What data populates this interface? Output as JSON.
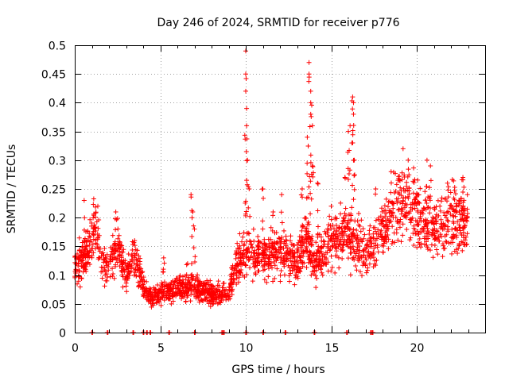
{
  "chart_data": {
    "type": "scatter",
    "title": "Day 246 of 2024, SRMTID for receiver p776",
    "xlabel": "GPS time / hours",
    "ylabel": "SRMTID / TECUs",
    "xlim": [
      0,
      24
    ],
    "ylim": [
      0,
      0.5
    ],
    "xticks": [
      0,
      5,
      10,
      15,
      20
    ],
    "xtick_labels": [
      "0",
      "5",
      "10",
      "15",
      "20"
    ],
    "yticks": [
      0,
      0.05,
      0.1,
      0.15,
      0.2,
      0.25,
      0.3,
      0.35,
      0.4,
      0.45,
      0.5
    ],
    "ytick_labels": [
      "0",
      "0.05",
      "0.1",
      "0.15",
      "0.2",
      "0.25",
      "0.3",
      "0.35",
      "0.4",
      "0.45",
      "0.5"
    ],
    "grid": true,
    "marker": "+",
    "color": "#ff0000",
    "series": [
      {
        "name": "SRMTID",
        "trend": [
          [
            0.0,
            0.11
          ],
          [
            0.5,
            0.13
          ],
          [
            1.0,
            0.16
          ],
          [
            1.2,
            0.18
          ],
          [
            1.5,
            0.12
          ],
          [
            2.0,
            0.11
          ],
          [
            2.5,
            0.15
          ],
          [
            3.0,
            0.1
          ],
          [
            3.5,
            0.13
          ],
          [
            4.0,
            0.08
          ],
          [
            4.5,
            0.06
          ],
          [
            5.0,
            0.07
          ],
          [
            6.0,
            0.075
          ],
          [
            7.0,
            0.08
          ],
          [
            8.0,
            0.065
          ],
          [
            9.0,
            0.07
          ],
          [
            9.5,
            0.12
          ],
          [
            10.0,
            0.14
          ],
          [
            11.0,
            0.13
          ],
          [
            12.0,
            0.14
          ],
          [
            13.0,
            0.12
          ],
          [
            13.5,
            0.17
          ],
          [
            14.0,
            0.12
          ],
          [
            15.0,
            0.16
          ],
          [
            16.0,
            0.17
          ],
          [
            17.0,
            0.14
          ],
          [
            18.0,
            0.18
          ],
          [
            19.0,
            0.23
          ],
          [
            20.0,
            0.21
          ],
          [
            21.0,
            0.18
          ],
          [
            22.0,
            0.2
          ],
          [
            23.0,
            0.19
          ]
        ],
        "spikes": [
          [
            0.55,
            0.23
          ],
          [
            1.35,
            0.22
          ],
          [
            2.4,
            0.21
          ],
          [
            3.5,
            0.16
          ],
          [
            5.2,
            0.13
          ],
          [
            6.6,
            0.12
          ],
          [
            6.8,
            0.24
          ],
          [
            6.9,
            0.21
          ],
          [
            7.0,
            0.18
          ],
          [
            10.0,
            0.49
          ],
          [
            10.0,
            0.45
          ],
          [
            10.0,
            0.42
          ],
          [
            10.05,
            0.39
          ],
          [
            10.05,
            0.36
          ],
          [
            10.1,
            0.3
          ],
          [
            10.2,
            0.25
          ],
          [
            11.0,
            0.25
          ],
          [
            11.6,
            0.21
          ],
          [
            12.1,
            0.24
          ],
          [
            13.3,
            0.25
          ],
          [
            13.6,
            0.34
          ],
          [
            13.7,
            0.47
          ],
          [
            13.7,
            0.45
          ],
          [
            13.8,
            0.42
          ],
          [
            13.8,
            0.4
          ],
          [
            13.8,
            0.38
          ],
          [
            13.9,
            0.36
          ],
          [
            13.9,
            0.29
          ],
          [
            14.2,
            0.26
          ],
          [
            15.0,
            0.22
          ],
          [
            15.8,
            0.27
          ],
          [
            16.0,
            0.35
          ],
          [
            16.1,
            0.36
          ],
          [
            16.2,
            0.33
          ],
          [
            16.25,
            0.41
          ],
          [
            16.3,
            0.4
          ],
          [
            16.3,
            0.38
          ],
          [
            16.35,
            0.3
          ],
          [
            17.6,
            0.25
          ],
          [
            18.5,
            0.28
          ],
          [
            19.2,
            0.32
          ],
          [
            19.5,
            0.3
          ],
          [
            20.6,
            0.3
          ],
          [
            20.8,
            0.29
          ],
          [
            21.8,
            0.26
          ],
          [
            22.7,
            0.27
          ]
        ],
        "zero_points": [
          1.0,
          1.9,
          3.4,
          4.0,
          4.2,
          4.4,
          5.5,
          7.0,
          8.6,
          8.7,
          10.0,
          11.0,
          12.3,
          14.0,
          15.9,
          17.3,
          17.4
        ]
      }
    ]
  }
}
